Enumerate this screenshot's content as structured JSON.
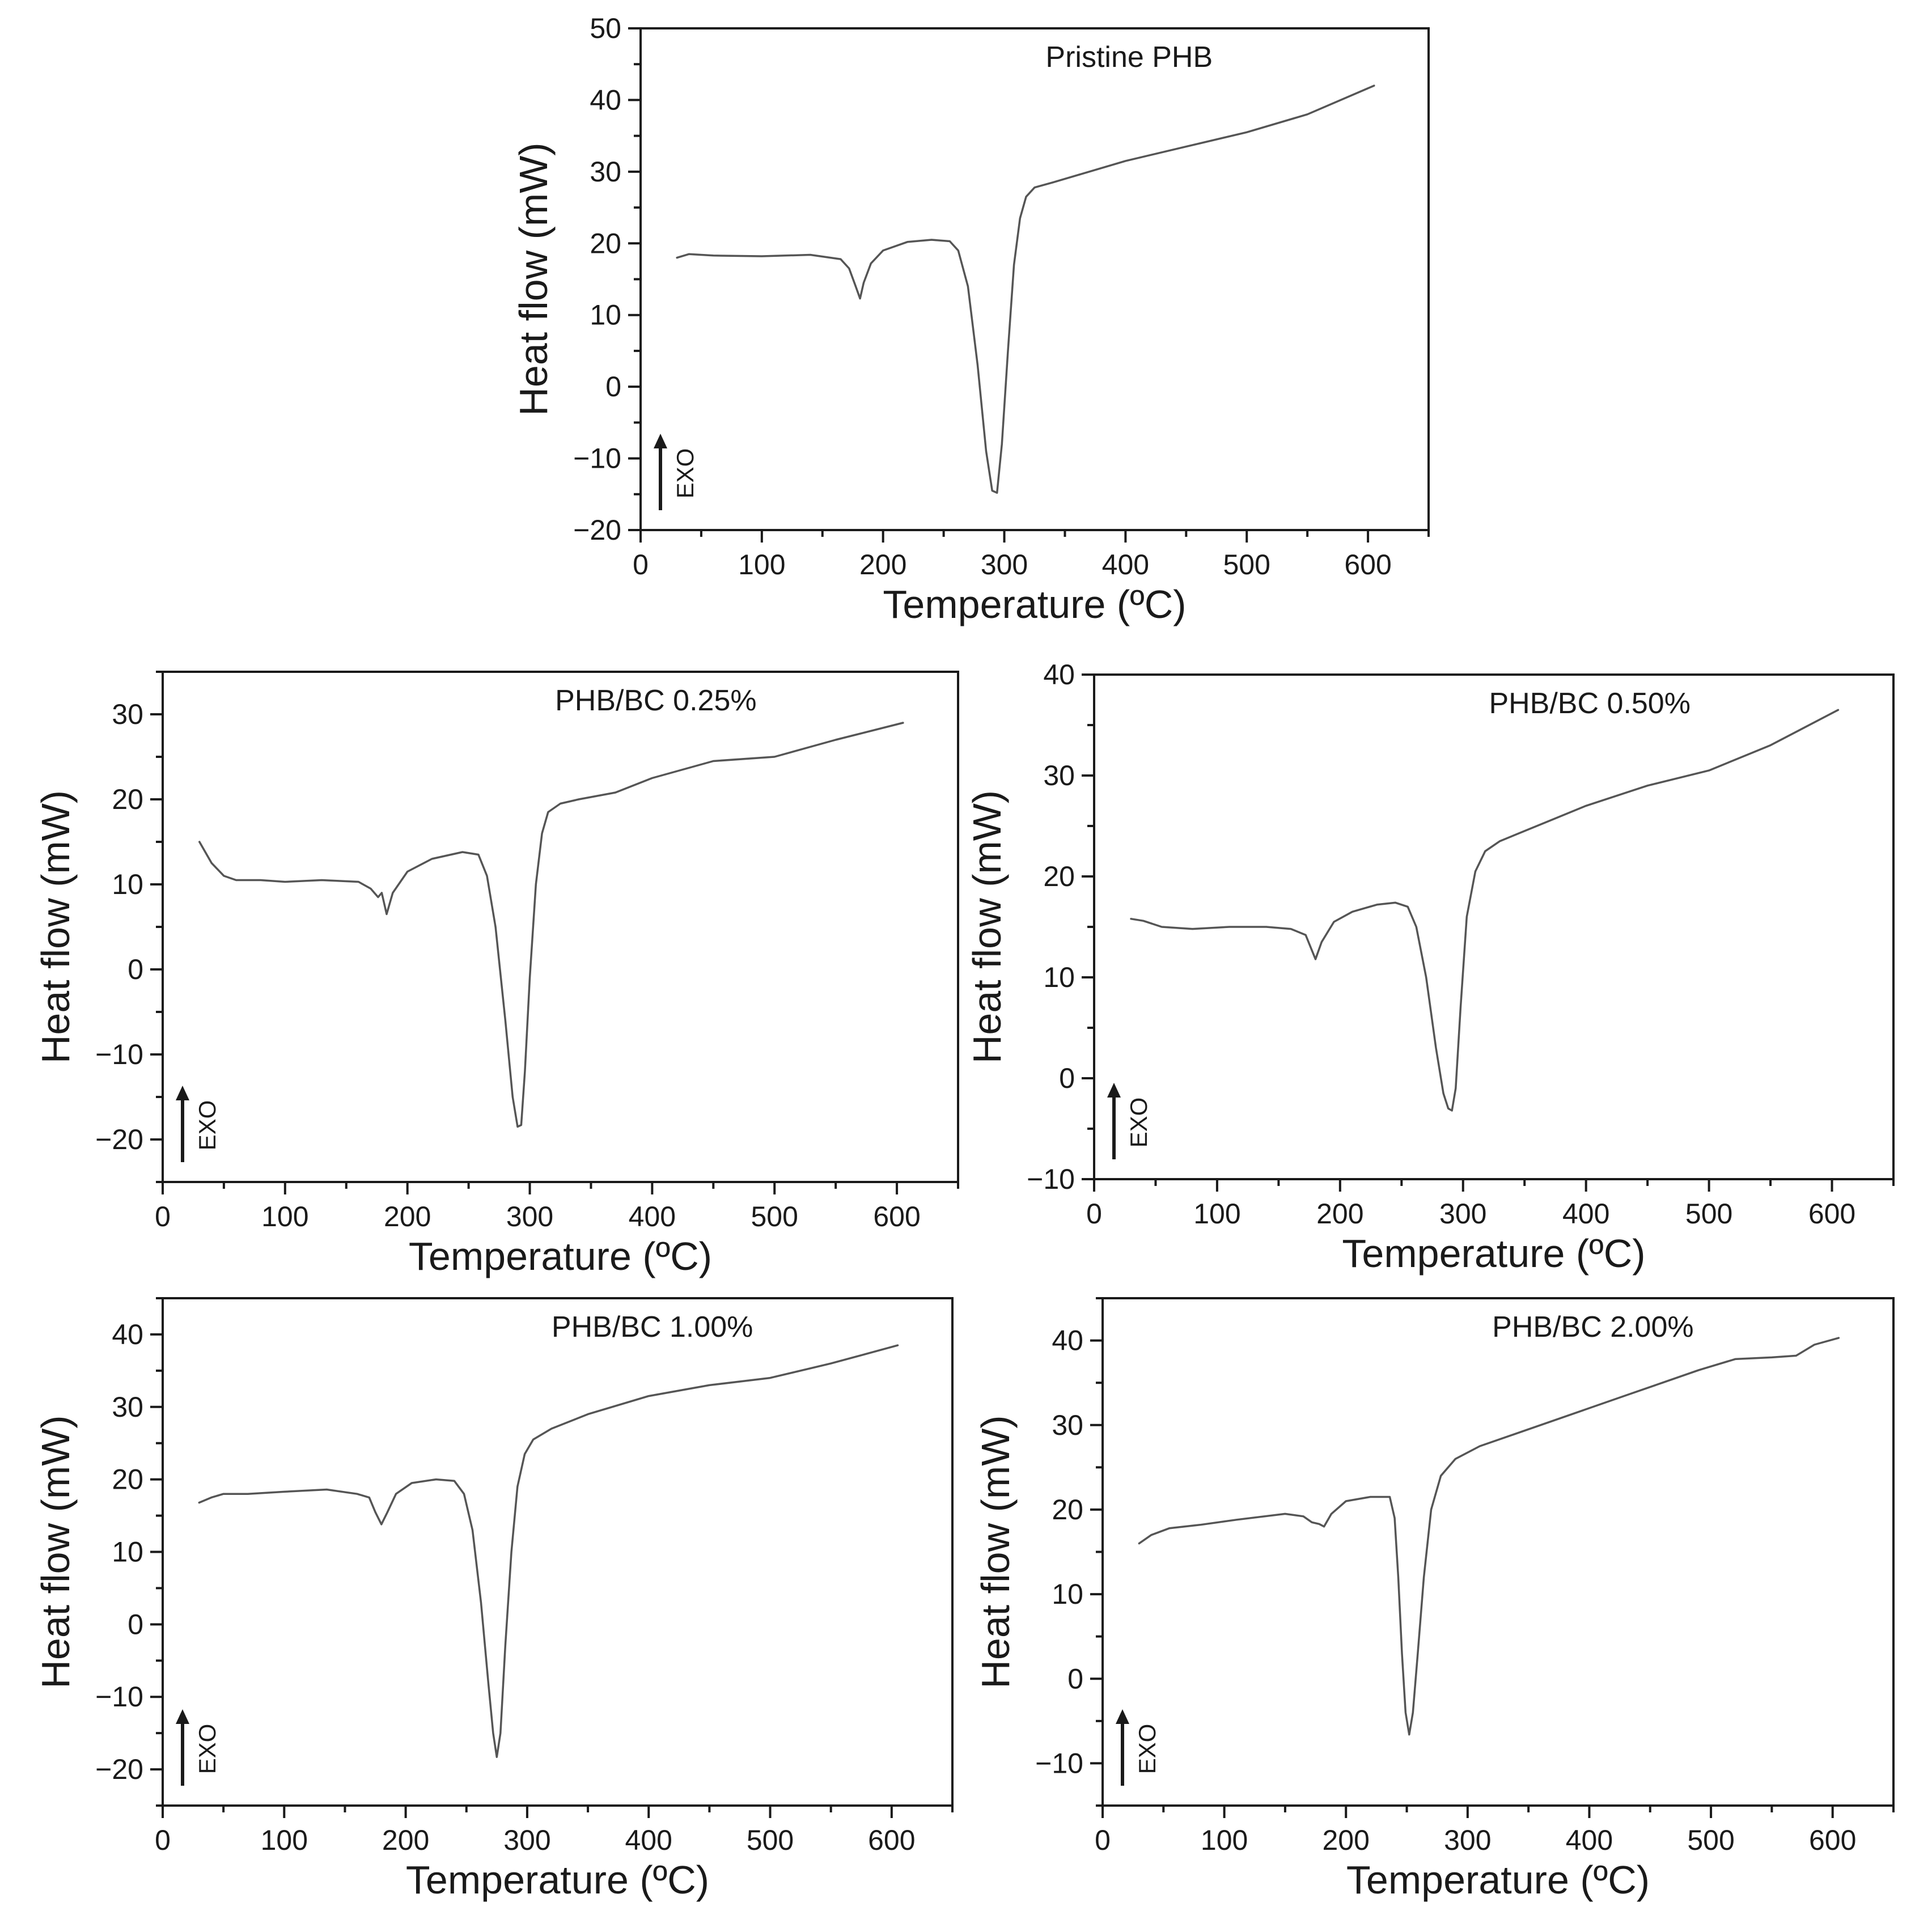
{
  "figure": {
    "description_free": true
  },
  "chart_data": [
    {
      "type": "line",
      "title": "Pristine PHB",
      "xlabel": "Temperature (ºC)",
      "ylabel": "Heat flow (mW)",
      "exo_label": "EXO",
      "xlim": [
        0,
        650
      ],
      "ylim": [
        -20,
        50
      ],
      "xticks": [
        0,
        100,
        200,
        300,
        400,
        500,
        600
      ],
      "xtick_labels": [
        "0",
        "100",
        "200",
        "300",
        "400",
        "500",
        "600"
      ],
      "yticks": [
        -20,
        -10,
        0,
        10,
        20,
        30,
        40,
        50
      ],
      "ytick_labels": [
        "−20",
        "−10",
        "0",
        "10",
        "20",
        "30",
        "40",
        "50"
      ],
      "x": [
        30,
        40,
        60,
        100,
        140,
        165,
        172,
        177,
        181,
        184,
        190,
        200,
        220,
        240,
        255,
        262,
        270,
        278,
        285,
        290,
        294,
        298,
        303,
        308,
        313,
        318,
        325,
        340,
        360,
        400,
        450,
        500,
        550,
        605
      ],
      "y": [
        18,
        18.5,
        18.3,
        18.2,
        18.4,
        17.8,
        16.5,
        14.2,
        12.3,
        14.5,
        17.2,
        19,
        20.2,
        20.5,
        20.3,
        19,
        14,
        3,
        -9,
        -14.5,
        -14.8,
        -8,
        5,
        17,
        23.5,
        26.5,
        27.8,
        28.5,
        29.5,
        31.5,
        33.5,
        35.5,
        38,
        42
      ]
    },
    {
      "type": "line",
      "title": "PHB/BC 0.25%",
      "xlabel": "Temperature (ºC)",
      "ylabel": "Heat flow (mW)",
      "exo_label": "EXO",
      "xlim": [
        0,
        650
      ],
      "ylim": [
        -25,
        35
      ],
      "xticks": [
        0,
        100,
        200,
        300,
        400,
        500,
        600
      ],
      "xtick_labels": [
        "0",
        "100",
        "200",
        "300",
        "400",
        "500",
        "600"
      ],
      "yticks": [
        -20,
        -10,
        0,
        10,
        20,
        30
      ],
      "ytick_labels": [
        "−20",
        "−10",
        "0",
        "10",
        "20",
        "30"
      ],
      "x": [
        30,
        40,
        50,
        60,
        80,
        100,
        130,
        160,
        170,
        176,
        179,
        183,
        188,
        200,
        220,
        245,
        258,
        265,
        272,
        280,
        286,
        290,
        293,
        296,
        300,
        305,
        310,
        315,
        325,
        340,
        370,
        400,
        450,
        500,
        550,
        605
      ],
      "y": [
        15,
        12.5,
        11,
        10.5,
        10.5,
        10.3,
        10.5,
        10.3,
        9.5,
        8.5,
        9,
        6.5,
        9,
        11.5,
        13,
        13.8,
        13.5,
        11,
        5,
        -6,
        -15,
        -18.5,
        -18.3,
        -12,
        -1,
        10,
        16,
        18.5,
        19.5,
        20,
        20.8,
        22.5,
        24.5,
        25,
        27,
        29
      ]
    },
    {
      "type": "line",
      "title": "PHB/BC 0.50%",
      "xlabel": "Temperature (ºC)",
      "ylabel": "Heat flow (mW)",
      "exo_label": "EXO",
      "xlim": [
        0,
        650
      ],
      "ylim": [
        -10,
        40
      ],
      "xticks": [
        0,
        100,
        200,
        300,
        400,
        500,
        600
      ],
      "xtick_labels": [
        "0",
        "100",
        "200",
        "300",
        "400",
        "500",
        "600"
      ],
      "yticks": [
        -10,
        0,
        10,
        20,
        30,
        40
      ],
      "ytick_labels": [
        "−10",
        "0",
        "10",
        "20",
        "30",
        "40"
      ],
      "x": [
        30,
        40,
        55,
        80,
        110,
        140,
        160,
        172,
        176,
        180,
        185,
        195,
        210,
        230,
        245,
        255,
        262,
        270,
        278,
        284,
        288,
        291,
        294,
        298,
        303,
        310,
        318,
        330,
        350,
        370,
        400,
        450,
        500,
        550,
        605
      ],
      "y": [
        15.8,
        15.6,
        15,
        14.8,
        15,
        15,
        14.8,
        14.2,
        13,
        11.8,
        13.5,
        15.5,
        16.5,
        17.2,
        17.4,
        17,
        15,
        10,
        3,
        -1.5,
        -3,
        -3.2,
        -1,
        7,
        16,
        20.5,
        22.5,
        23.5,
        24.5,
        25.5,
        27,
        29,
        30.5,
        33,
        36.5
      ]
    },
    {
      "type": "line",
      "title": "PHB/BC 1.00%",
      "xlabel": "Temperature (ºC)",
      "ylabel": "Heat flow (mW)",
      "exo_label": "EXO",
      "xlim": [
        0,
        650
      ],
      "ylim": [
        -25,
        45
      ],
      "xticks": [
        0,
        100,
        200,
        300,
        400,
        500,
        600
      ],
      "xtick_labels": [
        "0",
        "100",
        "200",
        "300",
        "400",
        "500",
        "600"
      ],
      "yticks": [
        -20,
        -10,
        0,
        10,
        20,
        30,
        40
      ],
      "ytick_labels": [
        "−20",
        "−10",
        "0",
        "10",
        "20",
        "30",
        "40"
      ],
      "x": [
        30,
        40,
        50,
        70,
        100,
        135,
        160,
        170,
        175,
        180,
        185,
        192,
        205,
        225,
        240,
        248,
        255,
        262,
        268,
        272,
        275,
        278,
        282,
        287,
        292,
        298,
        305,
        320,
        350,
        400,
        450,
        500,
        550,
        605
      ],
      "y": [
        16.8,
        17.5,
        18,
        18,
        18.3,
        18.6,
        18,
        17.5,
        15.5,
        13.8,
        15.5,
        18,
        19.5,
        20,
        19.8,
        18,
        13,
        3,
        -8,
        -15,
        -18.3,
        -15,
        -3,
        10,
        19,
        23.5,
        25.5,
        27,
        29,
        31.5,
        33,
        34,
        36,
        38.5
      ]
    },
    {
      "type": "line",
      "title": "PHB/BC 2.00%",
      "xlabel": "Temperature (ºC)",
      "ylabel": "Heat flow (mW)",
      "exo_label": "EXO",
      "xlim": [
        0,
        650
      ],
      "ylim": [
        -15,
        45
      ],
      "xticks": [
        0,
        100,
        200,
        300,
        400,
        500,
        600
      ],
      "xtick_labels": [
        "0",
        "100",
        "200",
        "300",
        "400",
        "500",
        "600"
      ],
      "yticks": [
        -10,
        0,
        10,
        20,
        30,
        40
      ],
      "ytick_labels": [
        "−10",
        "0",
        "10",
        "20",
        "30",
        "40"
      ],
      "x": [
        30,
        40,
        55,
        80,
        110,
        150,
        165,
        172,
        178,
        182,
        188,
        200,
        220,
        236,
        240,
        243,
        246,
        249,
        252,
        255,
        259,
        264,
        270,
        278,
        290,
        310,
        340,
        370,
        400,
        430,
        460,
        490,
        520,
        550,
        570,
        585,
        605
      ],
      "y": [
        16,
        17,
        17.8,
        18.2,
        18.8,
        19.5,
        19.2,
        18.5,
        18.3,
        18,
        19.5,
        21,
        21.5,
        21.5,
        19,
        12,
        3,
        -4,
        -6.6,
        -4,
        3,
        12,
        20,
        24,
        26,
        27.5,
        29,
        30.5,
        32,
        33.5,
        35,
        36.5,
        37.8,
        38,
        38.2,
        39.5,
        40.3
      ]
    }
  ]
}
